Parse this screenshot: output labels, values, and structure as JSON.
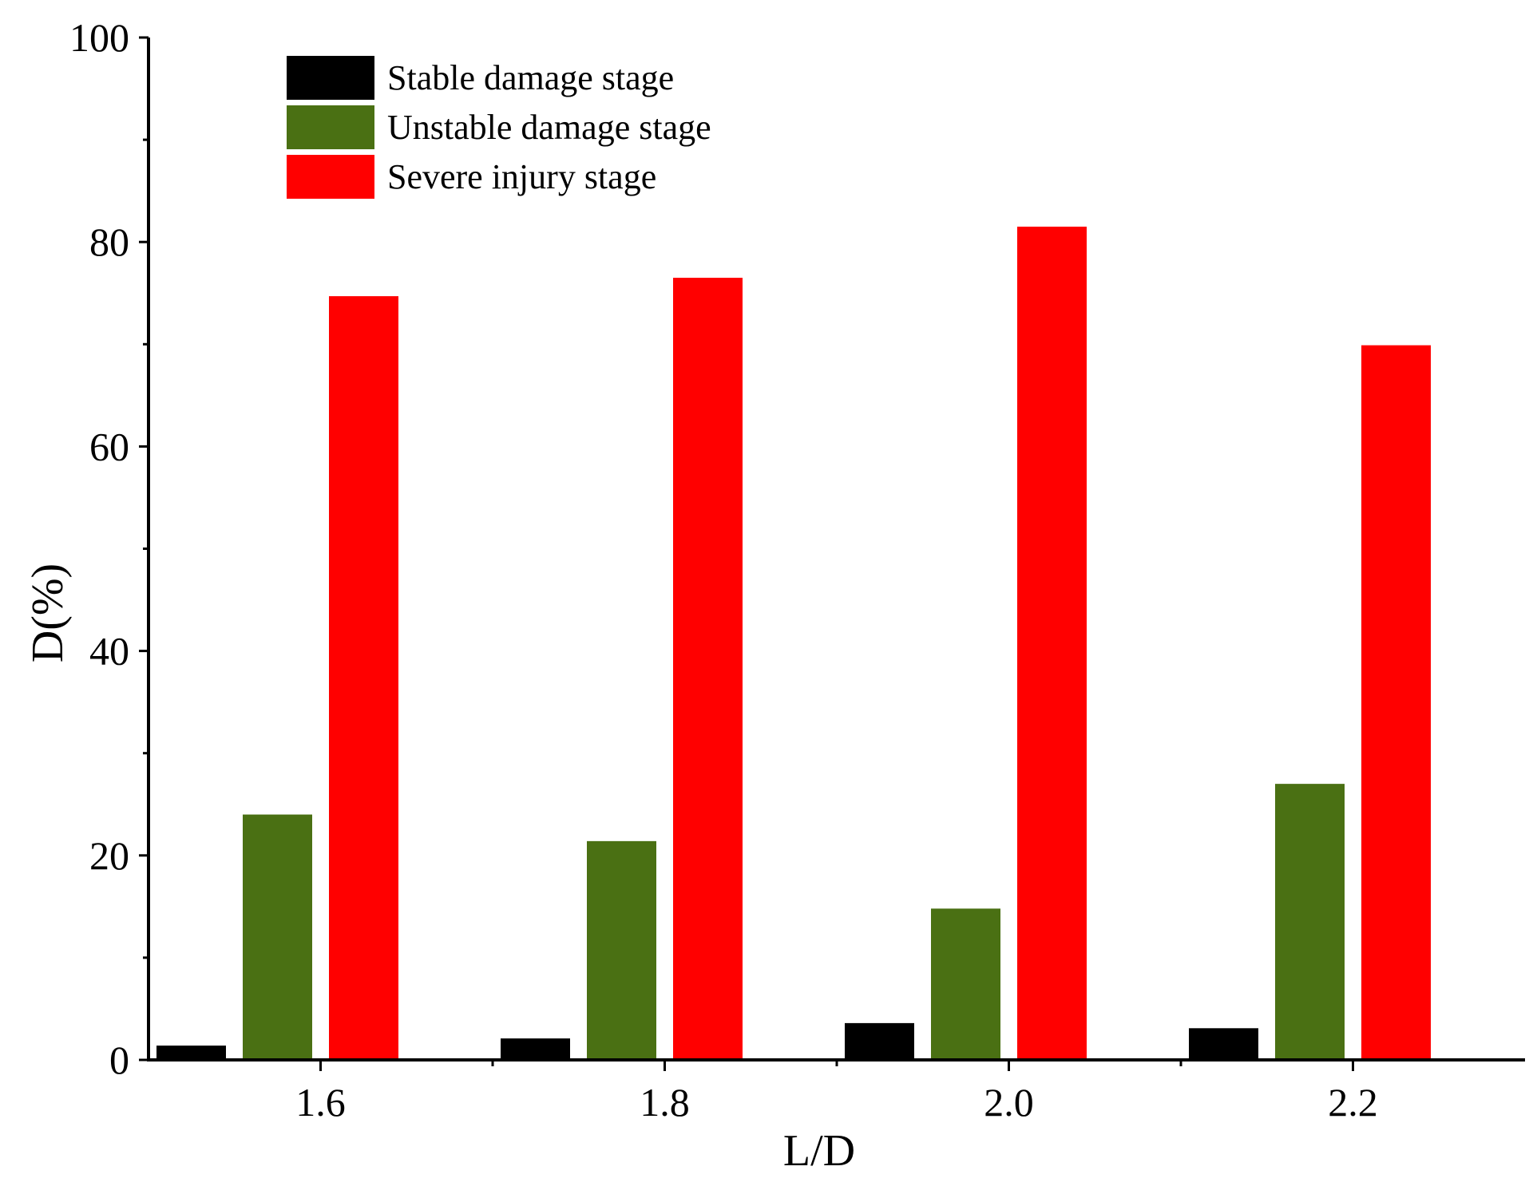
{
  "chart_data": {
    "type": "bar",
    "title": "",
    "xlabel": "L/D",
    "ylabel": "D(%)",
    "categories": [
      "1.6",
      "1.8",
      "2.0",
      "2.2"
    ],
    "ylim": [
      0,
      100
    ],
    "yticks": [
      0,
      20,
      40,
      60,
      80,
      100
    ],
    "minor_ticks": [
      10,
      30,
      50,
      70,
      90
    ],
    "grid": false,
    "legend_position": "top-left",
    "series": [
      {
        "name": "Stable damage stage",
        "color": "#000000",
        "values": [
          1.4,
          2.1,
          3.6,
          3.1
        ]
      },
      {
        "name": "Unstable damage stage",
        "color": "#4a7013",
        "values": [
          24.0,
          21.4,
          14.8,
          27.0
        ]
      },
      {
        "name": "Severe injury stage",
        "color": "#ff0000",
        "values": [
          74.7,
          76.5,
          81.5,
          69.9
        ]
      }
    ]
  }
}
